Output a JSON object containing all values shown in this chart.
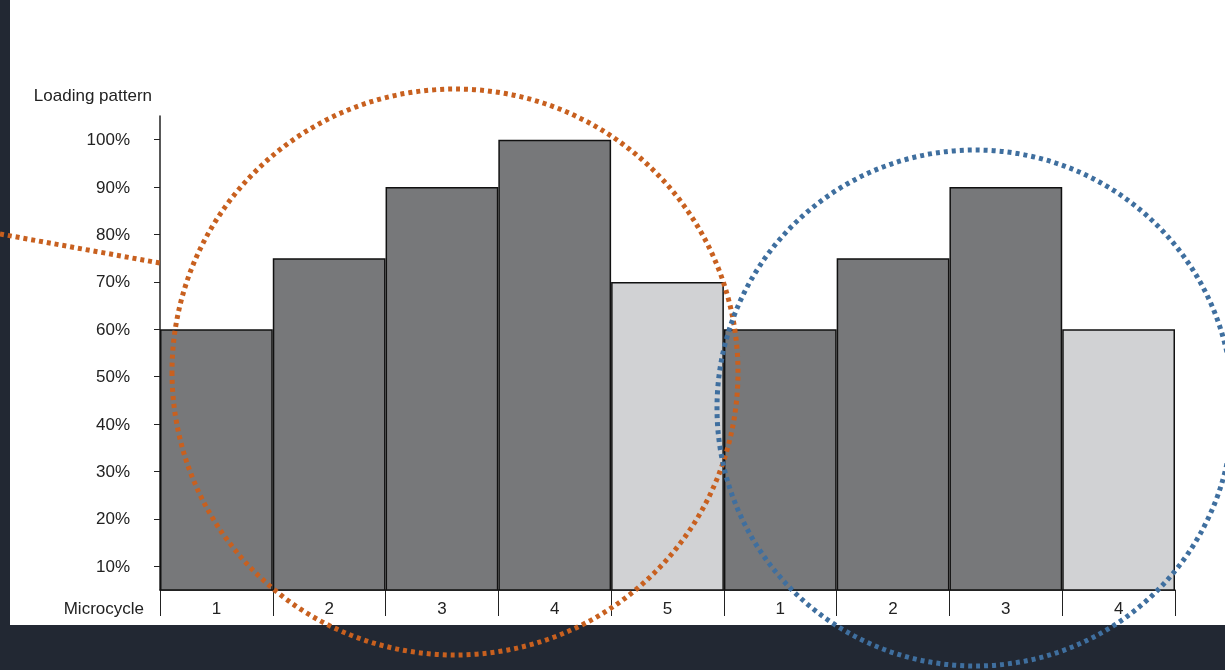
{
  "chart_data": {
    "type": "bar",
    "xlabel": "Microcycle",
    "ylabel": "Loading pattern",
    "categories": [
      "1",
      "2",
      "3",
      "4",
      "5",
      "1",
      "2",
      "3",
      "4"
    ],
    "values": [
      60,
      75,
      90,
      100,
      70,
      60,
      75,
      90,
      60
    ],
    "colors": [
      "#77787a",
      "#77787a",
      "#77787a",
      "#77787a",
      "#d1d2d4",
      "#77787a",
      "#77787a",
      "#77787a",
      "#d1d2d4"
    ],
    "ylim": [
      5,
      105
    ],
    "yticks": [
      {
        "value": 10,
        "label": "10%"
      },
      {
        "value": 20,
        "label": "20%"
      },
      {
        "value": 30,
        "label": "30%"
      },
      {
        "value": 40,
        "label": "40%"
      },
      {
        "value": 50,
        "label": "50%"
      },
      {
        "value": 60,
        "label": "60%"
      },
      {
        "value": 70,
        "label": "70%"
      },
      {
        "value": 80,
        "label": "80%"
      },
      {
        "value": 90,
        "label": "90%"
      },
      {
        "value": 100,
        "label": "100%"
      }
    ],
    "grid": false
  }
}
